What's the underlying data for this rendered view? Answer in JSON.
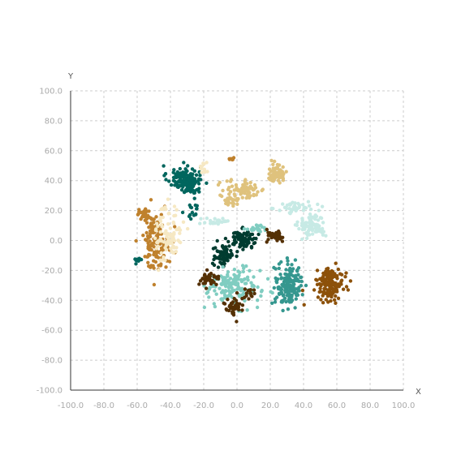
{
  "chart_data": {
    "type": "scatter",
    "title": "",
    "xlabel": "X",
    "ylabel": "Y",
    "xlim": [
      -100,
      100
    ],
    "ylim": [
      -100,
      100
    ],
    "x_ticks": [
      "-100.0",
      "-80.0",
      "-60.0",
      "-40.0",
      "-20.0",
      "0.0",
      "20.0",
      "40.0",
      "60.0",
      "80.0",
      "100.0"
    ],
    "y_ticks": [
      "100.0",
      "80.0",
      "60.0",
      "40.0",
      "20.0",
      "0.0",
      "-20.0",
      "-40.0",
      "-60.0",
      "-80.0",
      "-100.0"
    ],
    "grid": true,
    "series": [
      {
        "color": "#01665e",
        "clusters": [
          {
            "cx": -32,
            "cy": 42,
            "sx": 5,
            "sy": 4,
            "n": 110
          },
          {
            "cx": -28,
            "cy": 36,
            "sx": 3,
            "sy": 3,
            "n": 40
          },
          {
            "cx": -59,
            "cy": -13,
            "sx": 1.5,
            "sy": 1,
            "n": 12
          },
          {
            "cx": -27,
            "cy": 20,
            "sx": 2,
            "sy": 3,
            "n": 15
          }
        ]
      },
      {
        "color": "#c7eae5",
        "clusters": [
          {
            "cx": 45,
            "cy": 10,
            "sx": 4,
            "sy": 4,
            "n": 90
          },
          {
            "cx": 36,
            "cy": 22,
            "sx": 6,
            "sy": 2,
            "n": 40
          },
          {
            "cx": -12,
            "cy": 13,
            "sx": 4,
            "sy": 2,
            "n": 25
          }
        ]
      },
      {
        "color": "#dfc27d",
        "clusters": [
          {
            "cx": 24,
            "cy": 45,
            "sx": 3,
            "sy": 3,
            "n": 70
          },
          {
            "cx": 5,
            "cy": 34,
            "sx": 6,
            "sy": 3,
            "n": 70
          },
          {
            "cx": -3,
            "cy": 28,
            "sx": 3,
            "sy": 3,
            "n": 30
          }
        ]
      },
      {
        "color": "#bf812d",
        "clusters": [
          {
            "cx": -49,
            "cy": 0,
            "sx": 4,
            "sy": 9,
            "n": 140
          },
          {
            "cx": -56,
            "cy": 17,
            "sx": 2,
            "sy": 2,
            "n": 25
          },
          {
            "cx": -3,
            "cy": 55,
            "sx": 1,
            "sy": 1,
            "n": 6
          }
        ]
      },
      {
        "color": "#f6e8c3",
        "clusters": [
          {
            "cx": -41,
            "cy": 5,
            "sx": 4,
            "sy": 10,
            "n": 90
          },
          {
            "cx": -20,
            "cy": 48,
            "sx": 2,
            "sy": 2,
            "n": 12
          }
        ]
      },
      {
        "color": "#003c30",
        "clusters": [
          {
            "cx": 4,
            "cy": 1,
            "sx": 4,
            "sy": 3,
            "n": 90
          },
          {
            "cx": -8,
            "cy": -10,
            "sx": 3,
            "sy": 4,
            "n": 70
          }
        ]
      },
      {
        "color": "#80cdc1",
        "clusters": [
          {
            "cx": -2,
            "cy": -31,
            "sx": 8,
            "sy": 6,
            "n": 150
          },
          {
            "cx": 11,
            "cy": 8,
            "sx": 3,
            "sy": 1,
            "n": 20
          }
        ]
      },
      {
        "color": "#35978f",
        "clusters": [
          {
            "cx": 31,
            "cy": -30,
            "sx": 4,
            "sy": 7,
            "n": 170
          }
        ]
      },
      {
        "color": "#543005",
        "clusters": [
          {
            "cx": 23,
            "cy": 3,
            "sx": 3,
            "sy": 2,
            "n": 35
          },
          {
            "cx": -17,
            "cy": -26,
            "sx": 3,
            "sy": 2,
            "n": 40
          },
          {
            "cx": -2,
            "cy": -45,
            "sx": 3,
            "sy": 3,
            "n": 40
          },
          {
            "cx": 7,
            "cy": -36,
            "sx": 2,
            "sy": 2,
            "n": 15
          }
        ]
      },
      {
        "color": "#8c510a",
        "clusters": [
          {
            "cx": 56,
            "cy": -29,
            "sx": 4,
            "sy": 5,
            "n": 150
          }
        ]
      }
    ]
  }
}
